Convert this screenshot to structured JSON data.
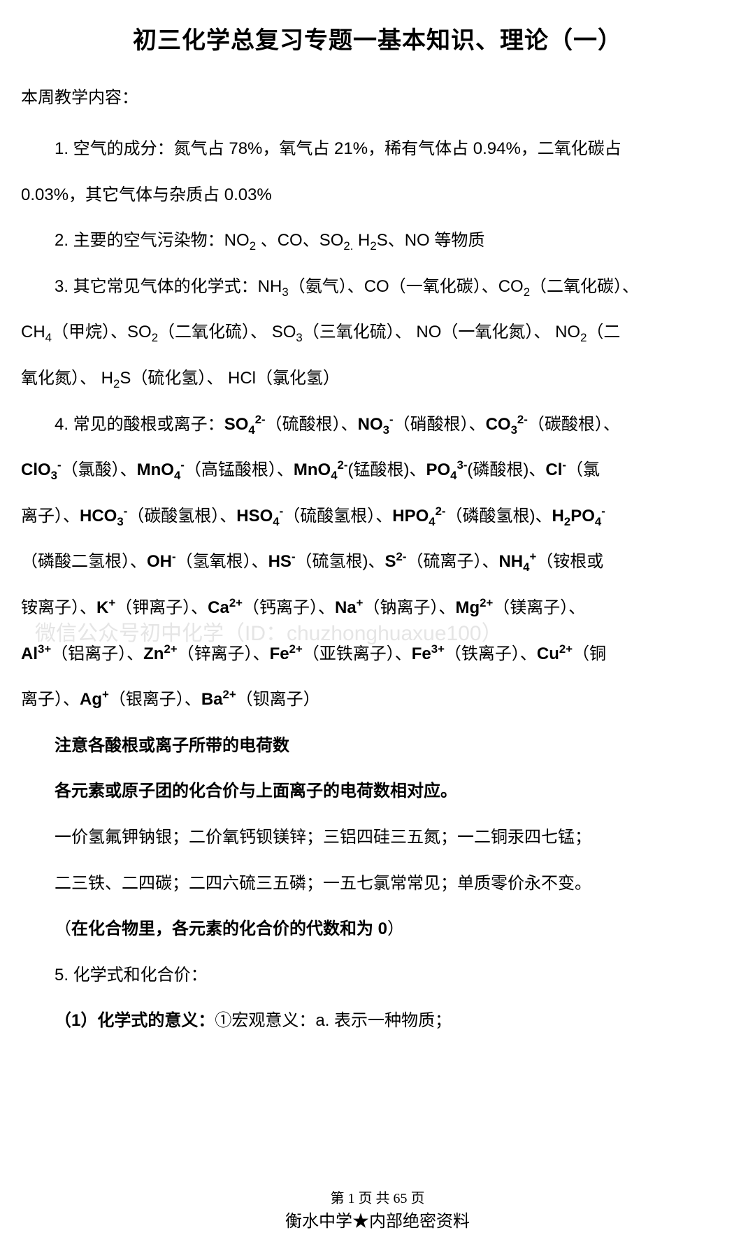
{
  "title": "初三化学总复习专题一基本知识、理论（一）",
  "intro": "本周教学内容：",
  "item1_prefix": "1. 空气的成分：氮气占 78%，氧气占 21%，稀有气体占 0.94%，二氧化碳占 0.03%，其它气体与杂质占 0.03%",
  "item2": "2. 主要的空气污染物：NO₂ 、CO、SO₂. H₂S、NO 等物质",
  "item3": "3. 其它常见气体的化学式：NH₃（氨气）、CO（一氧化碳）、CO₂（二氧化碳）、CH₄（甲烷）、SO₂（二氧化硫）、 SO₃（三氧化硫）、 NO（一氧化氮）、 NO₂（二氧化氮）、 H₂S（硫化氢）、 HCl（氯化氢）",
  "item4_prefix": "4. 常见的酸根或离子：",
  "ions": {
    "so4": "SO₄²⁻",
    "so4_name": "（硫酸根）、",
    "no3": "NO₃⁻",
    "no3_name": "（硝酸根）、",
    "co3": "CO₃²⁻",
    "co3_name": "（碳酸根）、",
    "clo3": "ClO₃⁻",
    "clo3_name": "（氯酸）、",
    "mno4": "MnO₄⁻",
    "mno4_name": "（高锰酸根）、",
    "mno42": "MnO₄²⁻",
    "mno42_name": "(锰酸根)、",
    "po4": "PO₄³⁻",
    "po4_name": "(磷酸根)、",
    "cl": "Cl⁻",
    "cl_name": "（氯离子）、",
    "hco3": "HCO₃⁻",
    "hco3_name": "（碳酸氢根）、",
    "hso4": "HSO₄⁻",
    "hso4_name": "（硫酸氢根）、",
    "hpo4": "HPO₄²⁻",
    "hpo4_name": "（磷酸氢根)、",
    "h2po4": "H₂PO₄⁻",
    "h2po4_name": "（磷酸二氢根）、",
    "oh": "OH⁻",
    "oh_name": "（氢氧根）、",
    "hs": "HS⁻",
    "hs_name": "（硫氢根)、",
    "s2": "S²⁻",
    "s2_name": "（硫离子）、",
    "nh4": "NH₄⁺",
    "nh4_name": "（铵根或铵离子）、",
    "k": "K⁺",
    "k_name": "（钾离子）、",
    "ca": "Ca²⁺",
    "ca_name": "（钙离子）、",
    "na": "Na⁺",
    "na_name": "（钠离子）、",
    "mg": "Mg²⁺",
    "mg_name": "（镁离子）、",
    "al": "Al³⁺",
    "al_name": "（铝离子）、",
    "zn": "Zn²⁺",
    "zn_name": "（锌离子）、",
    "fe2": "Fe²⁺",
    "fe2_name": "（亚铁离子）、",
    "fe3": "Fe³⁺",
    "fe3_name": "（铁离子）、",
    "cu": "Cu²⁺",
    "cu_name": "（铜离子）、",
    "ag": "Ag⁺",
    "ag_name": "（银离子）、",
    "ba": "Ba²⁺",
    "ba_name": "（钡离子）"
  },
  "note1": "注意各酸根或离子所带的电荷数",
  "note2": "各元素或原子团的化合价与上面离子的电荷数相对应。",
  "valence1": "一价氢氟钾钠银；二价氧钙钡镁锌；三铝四硅三五氮；一二铜汞四七锰；",
  "valence2": "二三铁、二四碳；二四六硫三五磷；一五七氯常常见；单质零价永不变。",
  "note3_prefix": "（",
  "note3_bold": "在化合物里，各元素的化合价的代数和为 0",
  "note3_suffix": "）",
  "item5": "5. 化学式和化合价：",
  "item5_1_prefix": "（1）化学式的意义：",
  "item5_1_text": "①宏观意义：a. 表示一种物质；",
  "watermark": "微信公众号初中化学（ID：chuzhonghuaxue100）",
  "footer_page": "第 1 页 共 65 页",
  "footer_school": "衡水中学★内部绝密资料"
}
